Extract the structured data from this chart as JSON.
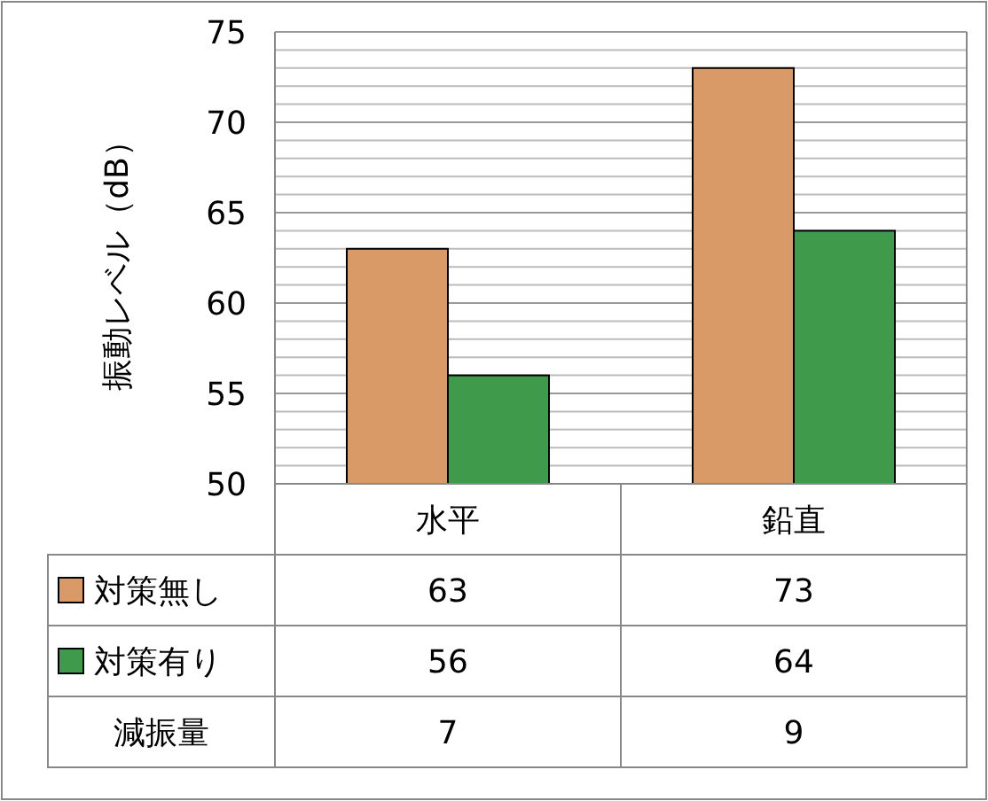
{
  "chart_data": {
    "type": "bar",
    "ylabel": "振動レベル（dB）",
    "categories": [
      "水平",
      "鉛直"
    ],
    "series": [
      {
        "name": "対策無し",
        "color": "#d99a68",
        "values": [
          63,
          73
        ]
      },
      {
        "name": "対策有り",
        "color": "#3f9a4c",
        "values": [
          56,
          64
        ]
      }
    ],
    "ylim": [
      50,
      75
    ],
    "yticks": [
      50,
      {
        "value": 51,
        "label": null
      },
      {
        "value": 52,
        "label": null
      },
      {
        "value": 53,
        "label": null
      },
      {
        "value": 54,
        "label": null
      },
      55,
      {
        "value": 56,
        "label": null
      },
      {
        "value": 57,
        "label": null
      },
      {
        "value": 58,
        "label": null
      },
      {
        "value": 59,
        "label": null
      },
      60,
      {
        "value": 61,
        "label": null
      },
      {
        "value": 62,
        "label": null
      },
      {
        "value": 63,
        "label": null
      },
      {
        "value": 64,
        "label": null
      },
      65,
      {
        "value": 66,
        "label": null
      },
      {
        "value": 67,
        "label": null
      },
      {
        "value": 68,
        "label": null
      },
      {
        "value": 69,
        "label": null
      },
      70,
      {
        "value": 71,
        "label": null
      },
      {
        "value": 72,
        "label": null
      },
      {
        "value": 73,
        "label": null
      },
      {
        "value": 74,
        "label": null
      },
      75
    ],
    "grid": "y",
    "legend": "bottom",
    "data_labels": true,
    "annotations": [
      "減振量",
      "7",
      "9"
    ]
  }
}
